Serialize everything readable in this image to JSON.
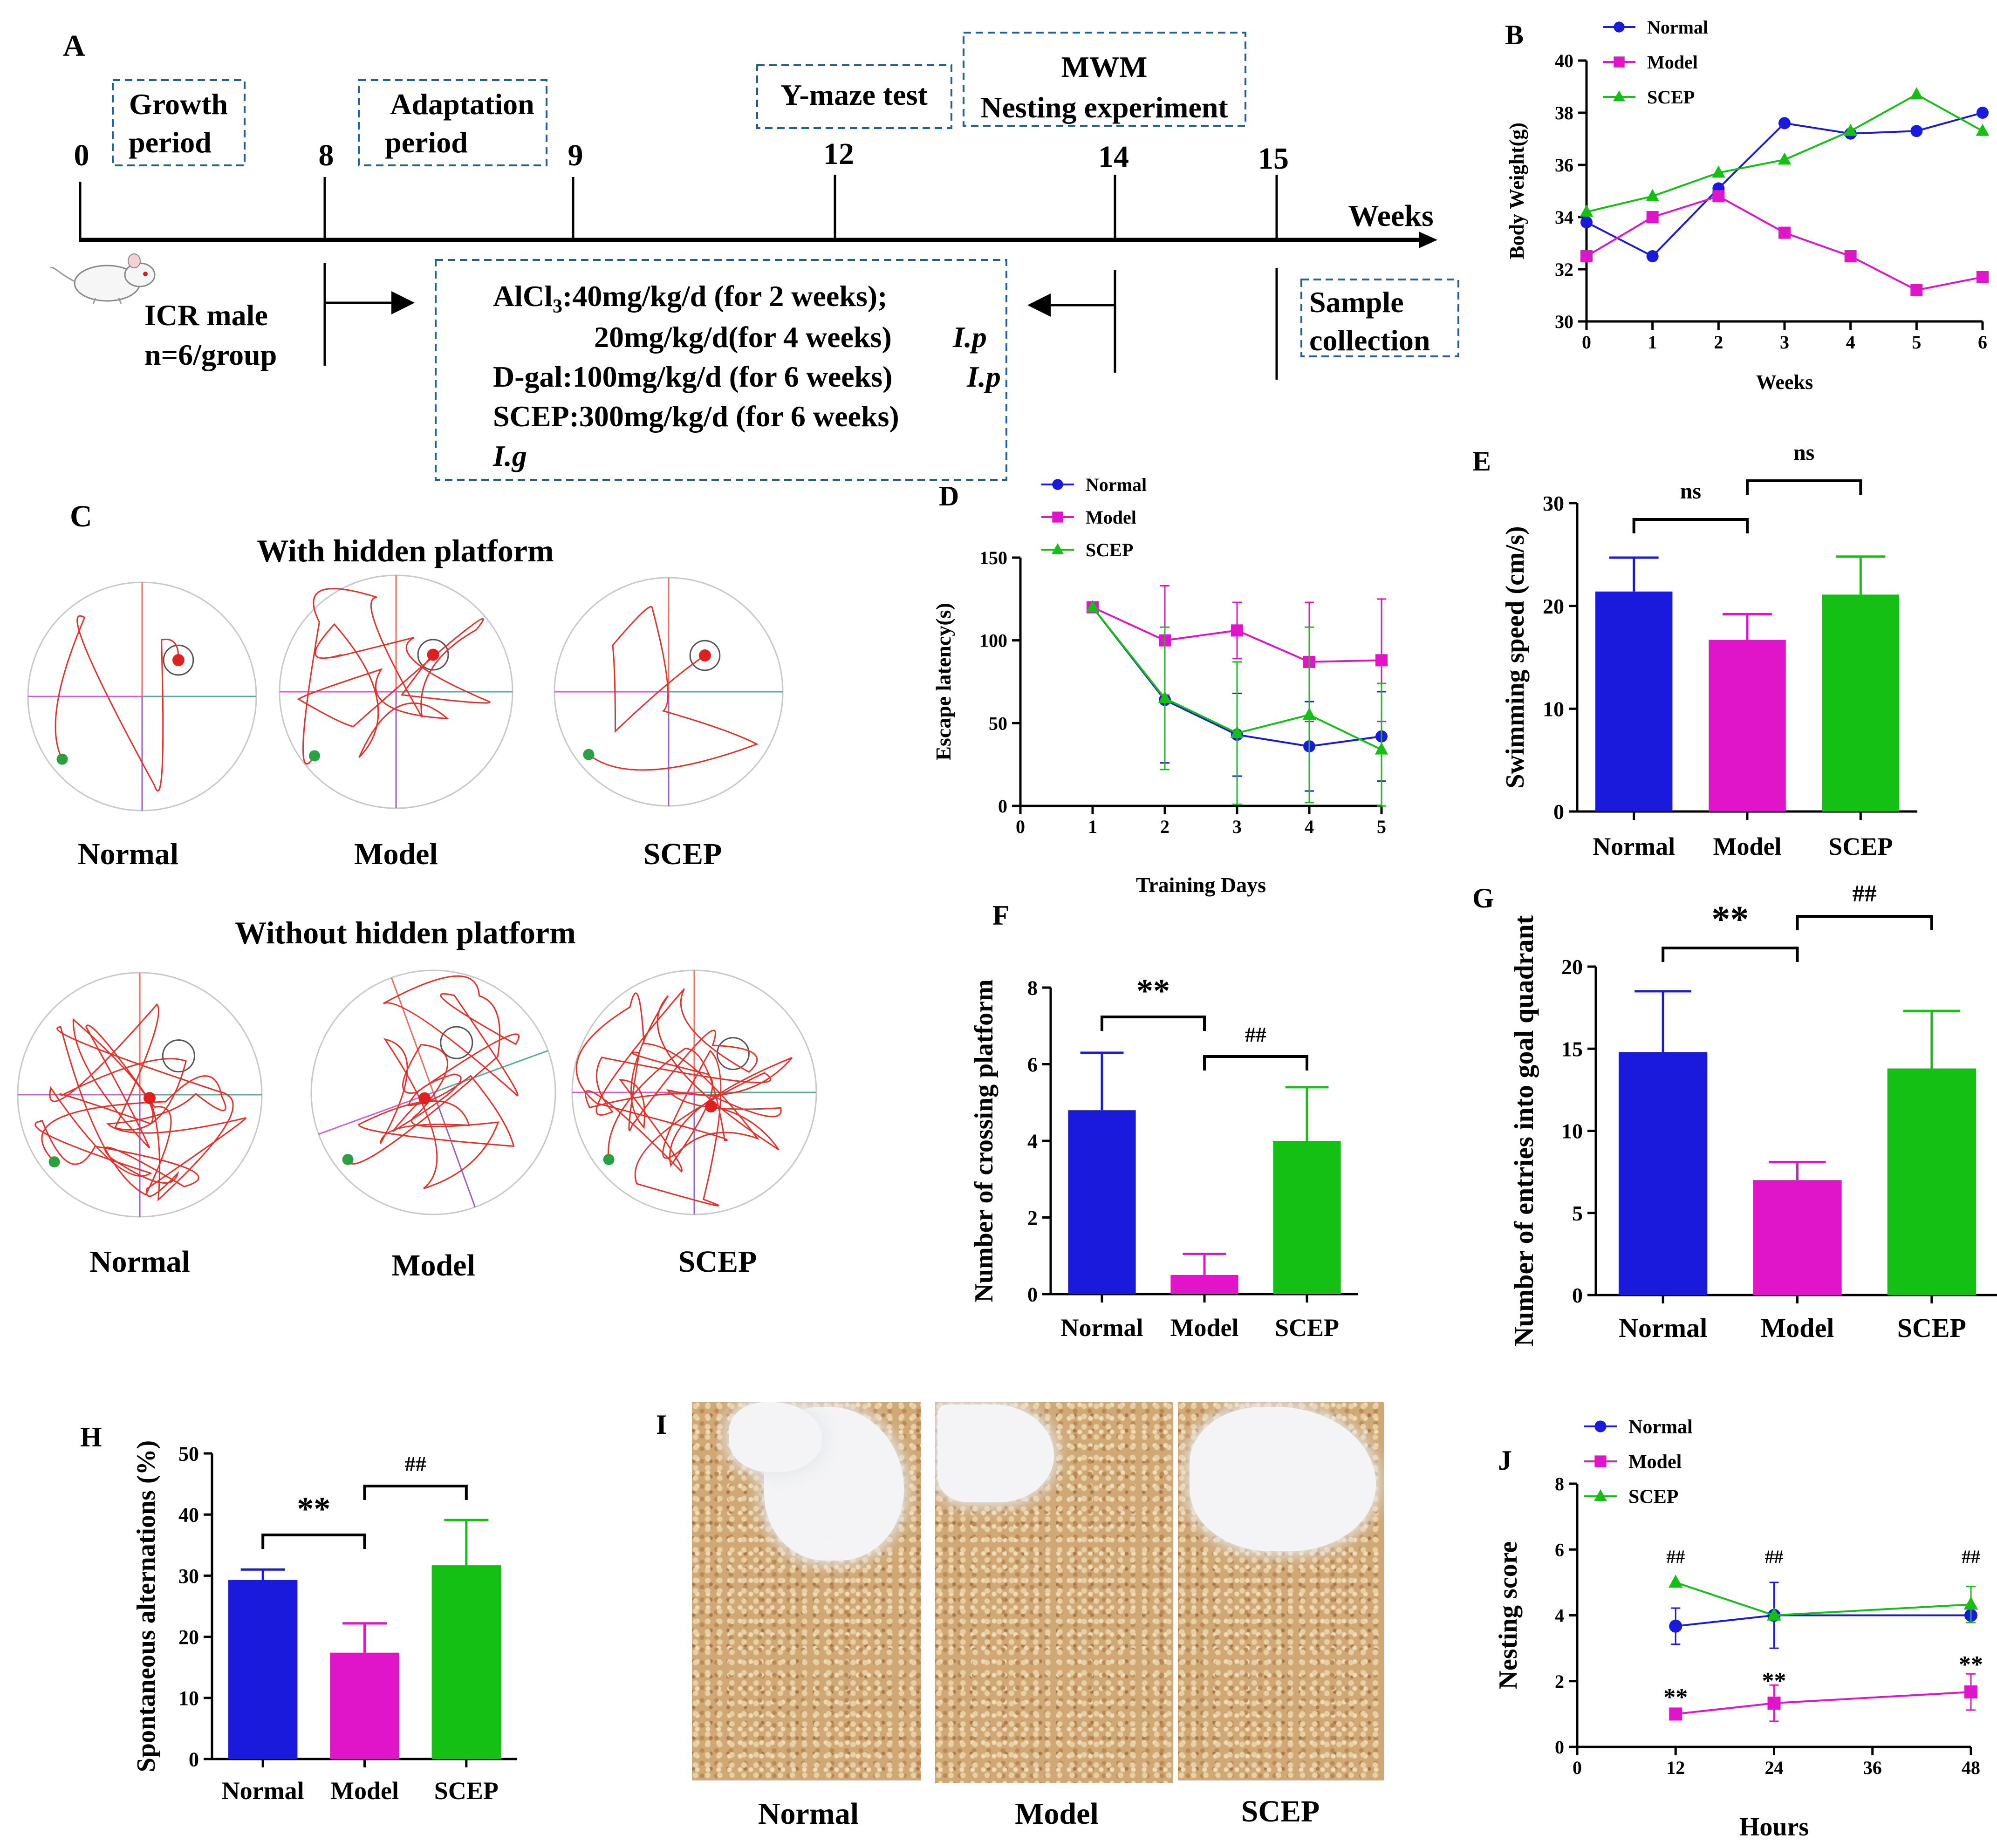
{
  "panel_letters": {
    "A": "A",
    "B": "B",
    "C": "C",
    "D": "D",
    "E": "E",
    "F": "F",
    "G": "G",
    "H": "H",
    "I": "I",
    "J": "J"
  },
  "timeline": {
    "ticks": [
      {
        "label": "0",
        "week": 0
      },
      {
        "label": "8",
        "week": 8
      },
      {
        "label": "9",
        "week": 9
      },
      {
        "label": "12",
        "week": 12
      },
      {
        "label": "14",
        "week": 14
      },
      {
        "label": "15",
        "week": 15
      }
    ],
    "axis_label": "Weeks",
    "phase_boxes": [
      {
        "lines": [
          "Growth",
          "period"
        ]
      },
      {
        "lines": [
          "Adaptation",
          "period"
        ]
      },
      {
        "lines": [
          "Y-maze test"
        ]
      },
      {
        "lines": [
          "MWM",
          "Nesting experiment"
        ]
      }
    ],
    "animals": [
      "ICR male",
      "n=6/group"
    ],
    "treatment": {
      "alcl3_prefix": "AlCl",
      "alcl3_sub": "3",
      "alcl3_rest": ":40mg/kg/d (for 2 weeks);",
      "line2": "20mg/kg/d(for 4 weeks)",
      "line2_route": "I.p",
      "line3": "D-gal:100mg/kg/d (for 6 weeks)",
      "line3_route": "I.p",
      "line4": "SCEP:300mg/kg/d (for 6 weeks)",
      "line5_route": "I.g"
    },
    "sample": [
      "Sample",
      "collection"
    ]
  },
  "colors": {
    "normal": "#1a1adc",
    "model": "#e014c8",
    "scep": "#14c014",
    "track": "#e8302a",
    "quad_line": "#e87060"
  },
  "chart_data": [
    {
      "panel": "B",
      "type": "line",
      "xlabel": "Weeks",
      "ylabel": "Body Weight(g)",
      "xlim": [
        0,
        6
      ],
      "ylim": [
        30,
        40
      ],
      "xticks": [
        "0",
        "1",
        "2",
        "3",
        "4",
        "5",
        "6"
      ],
      "yticks": [
        "30",
        "32",
        "34",
        "36",
        "38",
        "40"
      ],
      "legend_position": "top-left",
      "series": [
        {
          "name": "Normal",
          "marker": "circle",
          "x": [
            0,
            1,
            2,
            3,
            4,
            5,
            6
          ],
          "y": [
            33.8,
            32.5,
            35.1,
            37.6,
            37.2,
            37.3,
            38.0
          ]
        },
        {
          "name": "Model",
          "marker": "square",
          "x": [
            0,
            1,
            2,
            3,
            4,
            5,
            6
          ],
          "y": [
            32.5,
            34.0,
            34.8,
            33.4,
            32.5,
            31.2,
            31.7
          ]
        },
        {
          "name": "SCEP",
          "marker": "triangle",
          "x": [
            0,
            1,
            2,
            3,
            4,
            5,
            6
          ],
          "y": [
            34.2,
            34.8,
            35.7,
            36.2,
            37.3,
            38.7,
            37.3
          ]
        }
      ]
    },
    {
      "panel": "D",
      "type": "line",
      "xlabel": "Training Days",
      "ylabel": "Escape latency(s)",
      "xlim": [
        0,
        5
      ],
      "ylim": [
        0,
        150
      ],
      "xticks": [
        "0",
        "1",
        "2",
        "3",
        "4",
        "5"
      ],
      "yticks": [
        "0",
        "50",
        "100",
        "150"
      ],
      "legend_position": "top-right",
      "series": [
        {
          "name": "Normal",
          "marker": "circle",
          "x": [
            1,
            2,
            3,
            4,
            5
          ],
          "y": [
            120,
            64,
            43,
            36,
            42
          ],
          "err": [
            0,
            38,
            25,
            27,
            27
          ]
        },
        {
          "name": "Model",
          "marker": "square",
          "x": [
            1,
            2,
            3,
            4,
            5
          ],
          "y": [
            120,
            100,
            106,
            87,
            88
          ],
          "err": [
            0,
            33,
            17,
            36,
            37
          ]
        },
        {
          "name": "SCEP",
          "marker": "triangle",
          "x": [
            1,
            2,
            3,
            4,
            5
          ],
          "y": [
            120,
            65,
            44,
            55,
            34
          ],
          "err": [
            0,
            43,
            43,
            53,
            40
          ]
        }
      ]
    },
    {
      "panel": "E",
      "type": "bar",
      "ylabel": "Swimming speed (cm/s)",
      "categories": [
        "Normal",
        "Model",
        "SCEP"
      ],
      "values": [
        21.4,
        16.7,
        21.1
      ],
      "errors": [
        3.3,
        2.5,
        3.7
      ],
      "ylim": [
        0,
        30
      ],
      "yticks": [
        "0",
        "10",
        "20",
        "30"
      ],
      "annotations": [
        "ns",
        "ns"
      ]
    },
    {
      "panel": "F",
      "type": "bar",
      "ylabel": "Number of crossing platform",
      "categories": [
        "Normal",
        "Model",
        "SCEP"
      ],
      "values": [
        4.8,
        0.5,
        4.0
      ],
      "errors": [
        1.5,
        0.55,
        1.4
      ],
      "ylim": [
        0,
        8
      ],
      "yticks": [
        "0",
        "2",
        "4",
        "6",
        "8"
      ],
      "annotations": [
        "**",
        "##"
      ]
    },
    {
      "panel": "G",
      "type": "bar",
      "ylabel": "Number of entries into goal quadrant",
      "categories": [
        "Normal",
        "Model",
        "SCEP"
      ],
      "values": [
        14.8,
        7.0,
        13.8
      ],
      "errors": [
        3.7,
        1.1,
        3.5
      ],
      "ylim": [
        0,
        20
      ],
      "yticks": [
        "0",
        "5",
        "10",
        "15",
        "20"
      ],
      "annotations": [
        "**",
        "##"
      ]
    },
    {
      "panel": "H",
      "type": "bar",
      "ylabel": "Spontaneous alternations (%)",
      "categories": [
        "Normal",
        "Model",
        "SCEP"
      ],
      "values": [
        29.3,
        17.4,
        31.7
      ],
      "errors": [
        1.7,
        4.8,
        7.4
      ],
      "ylim": [
        0,
        50
      ],
      "yticks": [
        "0",
        "10",
        "20",
        "30",
        "40",
        "50"
      ],
      "annotations": [
        "**",
        "##"
      ]
    },
    {
      "panel": "J",
      "type": "line",
      "xlabel": "Hours",
      "ylabel": "Nesting score",
      "xlim": [
        0,
        48
      ],
      "ylim": [
        0,
        8
      ],
      "xticks": [
        "0",
        "12",
        "24",
        "36",
        "48"
      ],
      "yticks": [
        "0",
        "2",
        "4",
        "6",
        "8"
      ],
      "legend_position": "top-left",
      "series": [
        {
          "name": "Normal",
          "marker": "circle",
          "x": [
            12,
            24,
            48
          ],
          "y": [
            3.67,
            4.0,
            4.0
          ],
          "err": [
            0.55,
            1.0,
            0
          ]
        },
        {
          "name": "Model",
          "marker": "square",
          "x": [
            12,
            24,
            48
          ],
          "y": [
            1.0,
            1.33,
            1.67
          ],
          "err": [
            0,
            0.55,
            0.55
          ]
        },
        {
          "name": "SCEP",
          "marker": "triangle",
          "x": [
            12,
            24,
            48
          ],
          "y": [
            5.0,
            4.0,
            4.33
          ],
          "err": [
            0,
            0,
            0.55
          ]
        }
      ],
      "annotations_top": [
        "##",
        "##",
        "##"
      ],
      "annotations_bottom": [
        "**",
        "**",
        "**"
      ]
    }
  ],
  "panel_c": {
    "title_with": "With hidden platform",
    "title_without": "Without hidden platform",
    "groups": [
      "Normal",
      "Model",
      "SCEP"
    ]
  },
  "panel_i": {
    "groups": [
      "Normal",
      "Model",
      "SCEP"
    ]
  }
}
